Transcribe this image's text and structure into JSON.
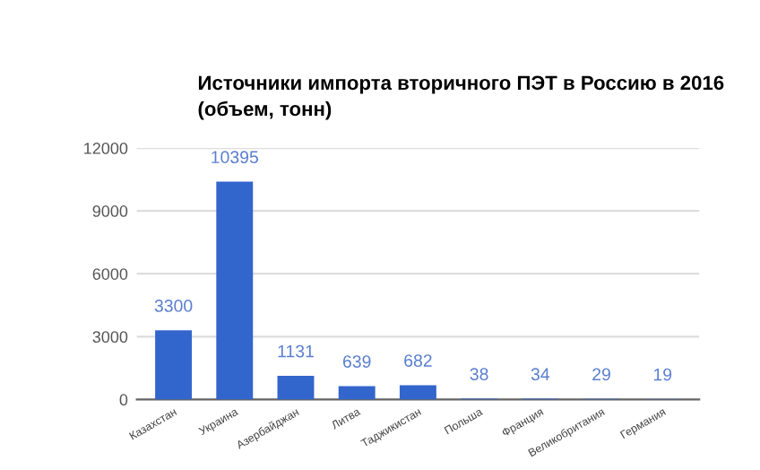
{
  "chart_data": {
    "type": "bar",
    "title": "Источники импорта вторичного ПЭТ в Россию в 2016\n(объем, тонн)",
    "categories": [
      "Казахстан",
      "Украина",
      "Азербайджан",
      "Литва",
      "Таджикистан",
      "Польша",
      "Франция",
      "Великобритания",
      "Германия"
    ],
    "values": [
      3300,
      10395,
      1131,
      639,
      682,
      38,
      34,
      29,
      19
    ],
    "color": "#3366cc",
    "ylim": [
      0,
      12000
    ],
    "yticks": [
      0,
      3000,
      6000,
      9000,
      12000
    ],
    "grid": "y",
    "data_labels": true
  }
}
